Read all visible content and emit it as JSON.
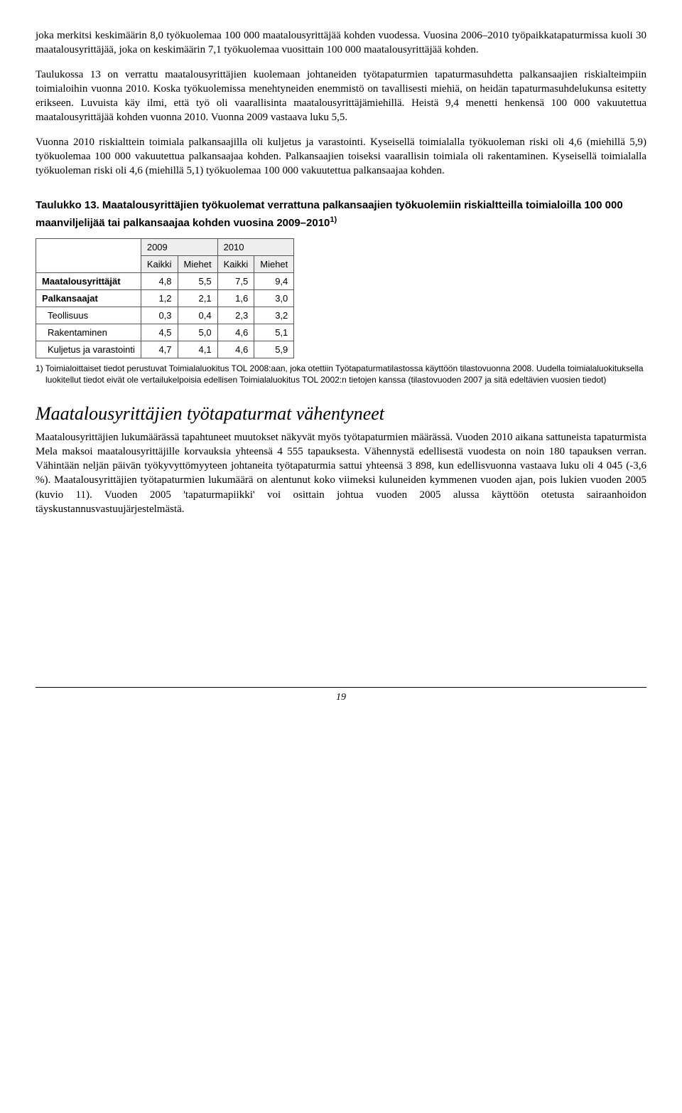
{
  "paragraphs": {
    "p1": "joka merkitsi keskimäärin 8,0 työkuolemaa 100 000 maatalousyrittäjää kohden vuodessa. Vuosina 2006–2010 työpaikkatapaturmissa kuoli 30 maatalousyrittäjää, joka on keskimäärin 7,1 työkuolemaa vuosittain 100 000 maatalousyrittäjää kohden.",
    "p2": "Taulukossa 13 on verrattu maatalousyrittäjien kuolemaan johtaneiden työtapaturmien tapaturmasuhdetta palkansaajien riskialteimpiin toimialoihin vuonna 2010. Koska työkuolemissa menehtyneiden enemmistö on tavallisesti miehiä, on heidän tapaturmasuhdelukunsa esitetty erikseen. Luvuista käy ilmi, että työ oli vaarallisinta maatalousyrittäjämiehillä. Heistä 9,4 menetti henkensä 100 000 vakuutettua maatalousyrittäjää kohden vuonna 2010. Vuonna 2009 vastaava luku 5,5.",
    "p3": "Vuonna 2010 riskialttein toimiala palkansaajilla oli kuljetus ja varastointi. Kyseisellä toimialalla työkuoleman riski oli 4,6 (miehillä 5,9) työkuolemaa 100 000 vakuutettua palkansaajaa kohden. Palkansaajien toiseksi vaarallisin toimiala oli rakentaminen. Kyseisellä toimialalla työkuoleman riski oli 4,6 (miehillä 5,1) työkuolemaa 100 000 vakuutettua palkansaajaa kohden."
  },
  "table": {
    "title_pre": "Taulukko 13. Maatalousyrittäjien työkuolemat verrattuna palkansaajien työkuolemiin riskialtteilla toimialoilla 100 000 maanviljelijää tai palkansaajaa kohden vuosina 2009–2010",
    "title_sup": "1)",
    "year_headers": [
      "2009",
      "2010"
    ],
    "sub_headers": [
      "Kaikki",
      "Miehet",
      "Kaikki",
      "Miehet"
    ],
    "rows": [
      {
        "label": "Maatalousyrittäjät",
        "bold": true,
        "indent": false,
        "vals": [
          "4,8",
          "5,5",
          "7,5",
          "9,4"
        ]
      },
      {
        "label": "Palkansaajat",
        "bold": true,
        "indent": false,
        "vals": [
          "1,2",
          "2,1",
          "1,6",
          "3,0"
        ]
      },
      {
        "label": "Teollisuus",
        "bold": false,
        "indent": true,
        "vals": [
          "0,3",
          "0,4",
          "2,3",
          "3,2"
        ]
      },
      {
        "label": "Rakentaminen",
        "bold": false,
        "indent": true,
        "vals": [
          "4,5",
          "5,0",
          "4,6",
          "5,1"
        ]
      },
      {
        "label": "Kuljetus ja varastointi",
        "bold": false,
        "indent": true,
        "vals": [
          "4,7",
          "4,1",
          "4,6",
          "5,9"
        ]
      }
    ],
    "footnote": "1) Toimialoittaiset tiedot perustuvat Toimialaluokitus TOL 2008:aan, joka otettiin Työtapaturmatilastossa käyttöön tilastovuonna 2008. Uudella toimialaluokituksella luokitellut tiedot eivät ole vertailukelpoisia edellisen Toimialaluokitus TOL 2002:n tietojen kanssa (tilastovuoden 2007 ja sitä edeltävien vuosien tiedot)"
  },
  "section": {
    "heading": "Maatalousyrittäjien työtapaturmat vähentyneet",
    "body": "Maatalousyrittäjien lukumäärässä tapahtuneet muutokset näkyvät myös työtapaturmien määrässä. Vuoden 2010 aikana sattuneista tapaturmista Mela maksoi maatalousyrittäjille korvauksia yhteensä 4 555 tapauksesta. Vähennystä edellisestä vuodesta on noin 180 tapauksen verran. Vähintään neljän päivän työkyvyttömyyteen johtaneita työtapaturmia sattui yhteensä 3 898, kun edellisvuonna vastaava luku oli 4 045 (-3,6 %). Maatalousyrittäjien työtapaturmien lukumäärä on alentunut koko viimeksi kuluneiden kymmenen vuoden ajan, pois lukien vuoden 2005 (kuvio 11). Vuoden 2005 'tapaturmapiikki' voi osittain johtua vuoden 2005 alussa käyttöön otetusta sairaanhoidon täyskustannusvastuujärjestelmästä."
  },
  "page_number": "19"
}
